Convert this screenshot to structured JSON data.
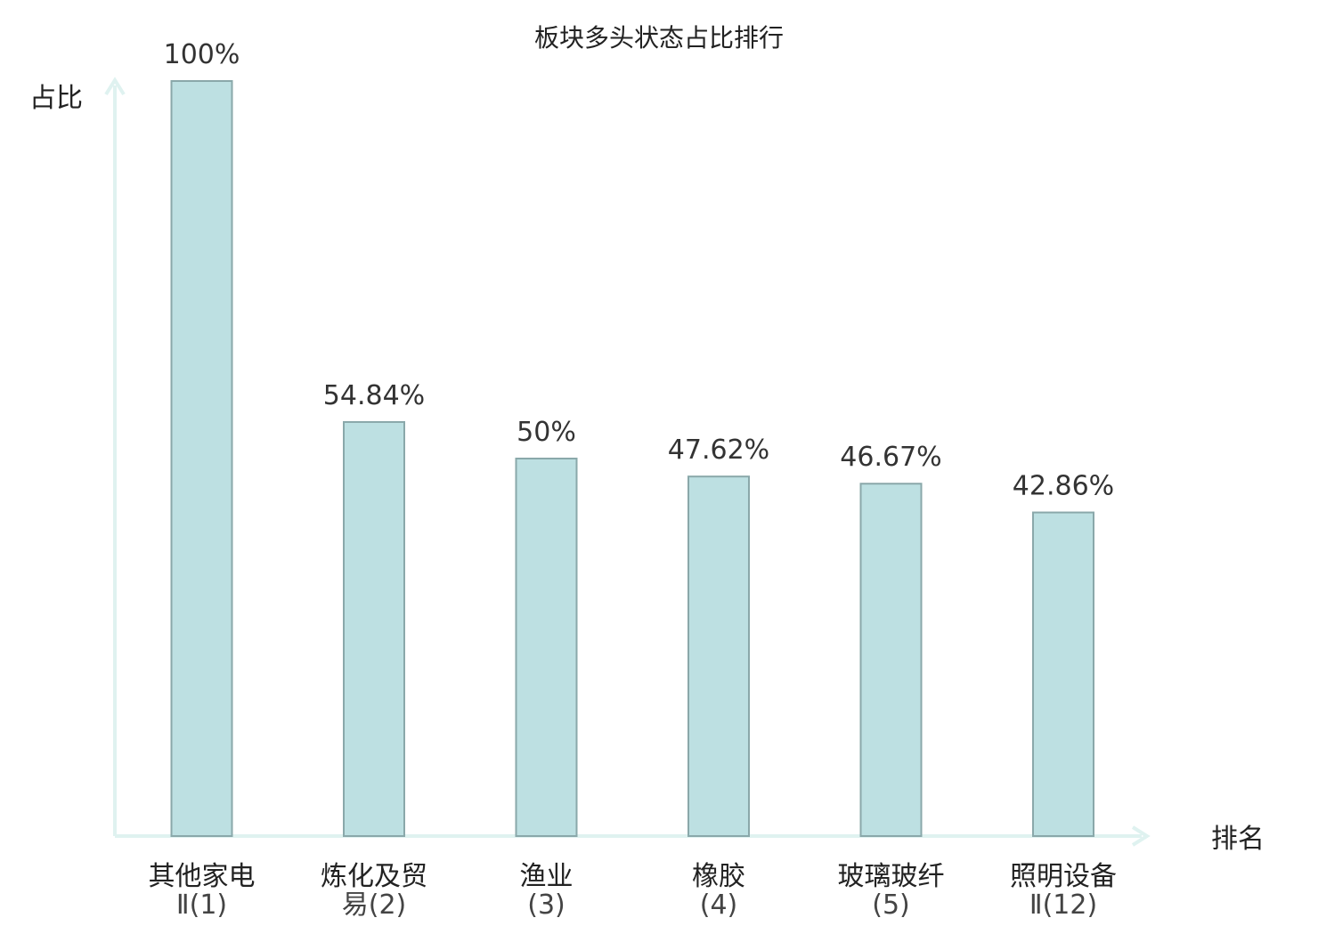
{
  "chart_data": {
    "type": "bar",
    "title": "板块多头状态占比排行",
    "ylabel": "占比",
    "xlabel": "排名",
    "ylim": [
      0,
      100
    ],
    "categories": [
      {
        "name": "其他家电",
        "rank": "Ⅱ(1)",
        "highlight": false
      },
      {
        "name": "炼化及贸",
        "rank": "易(2)",
        "highlight": false
      },
      {
        "name": "渔业",
        "rank": "(3)",
        "highlight": false
      },
      {
        "name": "橡胶",
        "rank": "(4)",
        "highlight": false
      },
      {
        "name": "玻璃玻纤",
        "rank": "(5)",
        "highlight": false
      },
      {
        "name": "照明设备",
        "rank": "Ⅱ(12)",
        "highlight": true
      }
    ],
    "values": [
      100,
      54.84,
      50,
      47.62,
      46.67,
      42.86
    ],
    "value_labels": [
      "100%",
      "54.84%",
      "50%",
      "47.62%",
      "46.67%",
      "42.86%"
    ],
    "grid": false,
    "colors": {
      "bar_fill": "#bde0e2",
      "bar_stroke": "#8aa8aa",
      "axis": "#dff2f0",
      "highlight_text": "#e01a1a",
      "text": "#222222"
    }
  }
}
